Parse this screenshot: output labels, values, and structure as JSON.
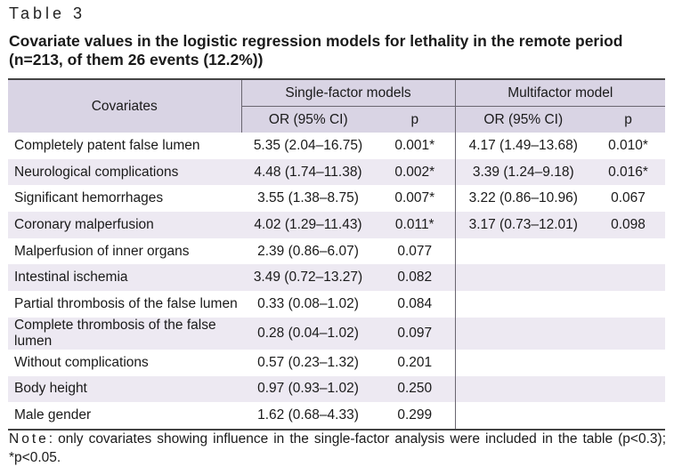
{
  "table_label": "Table 3",
  "title": "Covariate values in the logistic regression models for lethality in the remote period (n=213, of them 26 events (12.2%))",
  "headers": {
    "covariates": "Covariates",
    "single": "Single-factor models",
    "multi": "Multifactor model",
    "or": "OR (95% CI)",
    "p": "p"
  },
  "rows": [
    {
      "covariate": "Completely patent false lumen",
      "s_or": "5.35 (2.04–16.75)",
      "s_p": "0.001*",
      "m_or": "4.17 (1.49–13.68)",
      "m_p": "0.010*"
    },
    {
      "covariate": "Neurological complications",
      "s_or": "4.48 (1.74–11.38)",
      "s_p": "0.002*",
      "m_or": "3.39 (1.24–9.18)",
      "m_p": "0.016*"
    },
    {
      "covariate": "Significant hemorrhages",
      "s_or": "3.55 (1.38–8.75)",
      "s_p": "0.007*",
      "m_or": "3.22 (0.86–10.96)",
      "m_p": "0.067"
    },
    {
      "covariate": "Coronary malperfusion",
      "s_or": "4.02 (1.29–11.43)",
      "s_p": "0.011*",
      "m_or": "3.17 (0.73–12.01)",
      "m_p": "0.098"
    },
    {
      "covariate": "Malperfusion of inner organs",
      "s_or": "2.39 (0.86–6.07)",
      "s_p": "0.077",
      "m_or": "",
      "m_p": ""
    },
    {
      "covariate": "Intestinal ischemia",
      "s_or": "3.49 (0.72–13.27)",
      "s_p": "0.082",
      "m_or": "",
      "m_p": ""
    },
    {
      "covariate": "Partial thrombosis of the false lumen",
      "s_or": "0.33 (0.08–1.02)",
      "s_p": "0.084",
      "m_or": "",
      "m_p": ""
    },
    {
      "covariate": "Complete thrombosis of the false lumen",
      "s_or": "0.28 (0.04–1.02)",
      "s_p": "0.097",
      "m_or": "",
      "m_p": ""
    },
    {
      "covariate": "Without complications",
      "s_or": "0.57 (0.23–1.32)",
      "s_p": "0.201",
      "m_or": "",
      "m_p": ""
    },
    {
      "covariate": "Body height",
      "s_or": "0.97 (0.93–1.02)",
      "s_p": "0.250",
      "m_or": "",
      "m_p": ""
    },
    {
      "covariate": "Male gender",
      "s_or": "1.62 (0.68–4.33)",
      "s_p": "0.299",
      "m_or": "",
      "m_p": ""
    }
  ],
  "note": {
    "label": "Note",
    "text": ": only covariates showing influence in the single-factor analysis were included in the table (p<0.3); *p<0.05."
  }
}
